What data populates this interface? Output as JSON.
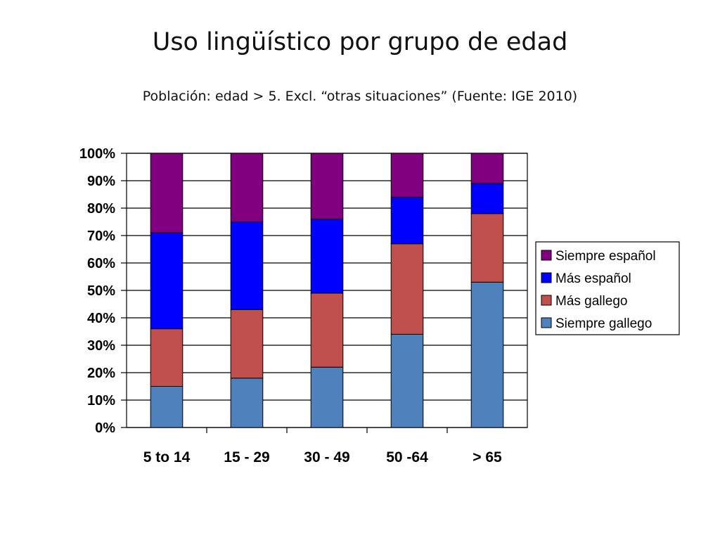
{
  "title": "Uso lingüístico por grupo de edad",
  "subtitle": "Población: edad  > 5. Excl. “otras situaciones” (Fuente: IGE 2010)",
  "chart_data": {
    "type": "bar",
    "stacked": true,
    "percent": true,
    "categories": [
      "5 to 14",
      "15 - 29",
      "30 - 49",
      "50 -64",
      "> 65"
    ],
    "series": [
      {
        "name": "Siempre gallego",
        "color": "#4F81BD",
        "values": [
          15,
          18,
          22,
          34,
          53
        ]
      },
      {
        "name": "Más gallego",
        "color": "#C0504D",
        "values": [
          21,
          25,
          27,
          33,
          25
        ]
      },
      {
        "name": "Más español",
        "color": "#0000FF",
        "values": [
          35,
          32,
          27,
          17,
          11
        ]
      },
      {
        "name": "Siempre español",
        "color": "#800080",
        "values": [
          29,
          25,
          24,
          16,
          11
        ]
      }
    ],
    "ylim": [
      0,
      100
    ],
    "yticks": [
      "0%",
      "10%",
      "20%",
      "30%",
      "40%",
      "50%",
      "60%",
      "70%",
      "80%",
      "90%",
      "100%"
    ],
    "grid": true,
    "legend_position": "right",
    "legend_order": [
      "Siempre español",
      "Más español",
      "Más gallego",
      "Siempre gallego"
    ]
  }
}
